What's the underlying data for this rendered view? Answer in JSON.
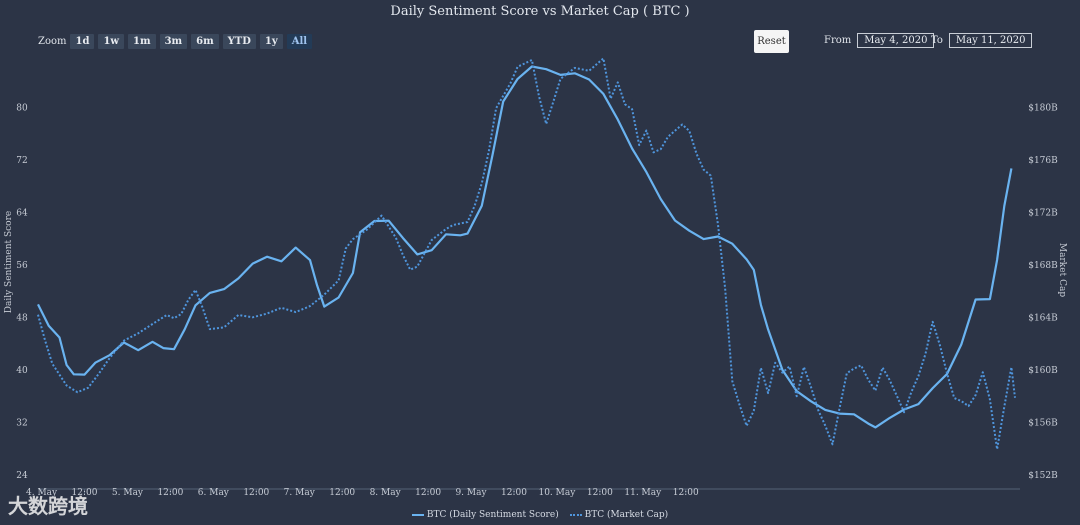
{
  "title": "Daily Sentiment Score vs Market Cap ( BTC )",
  "toolbar": {
    "zoom_label": "Zoom",
    "buttons": [
      "1d",
      "1w",
      "1m",
      "3m",
      "6m",
      "YTD",
      "1y",
      "All"
    ],
    "active": "All",
    "reset_label": "Reset",
    "from_label": "From",
    "from_value": "May 4, 2020",
    "to_label": "To",
    "to_value": "May 11, 2020"
  },
  "watermark": "大数跨境",
  "colors": {
    "sentiment": "#6ab3f0",
    "marketcap": "#4f95dc",
    "background": "#2c3446"
  },
  "chart_data": {
    "type": "line",
    "xlabel_ticks": [
      "4. May",
      "12:00",
      "5. May",
      "12:00",
      "6. May",
      "12:00",
      "7. May",
      "12:00",
      "8. May",
      "12:00",
      "9. May",
      "12:00",
      "10. May",
      "12:00",
      "11. May",
      "12:00"
    ],
    "x_unit": "hours since 4. May 00:00",
    "ylabel_left": "Daily Sentiment Score",
    "ylabel_right": "Market Cap",
    "yticks_left": [
      "24",
      "32",
      "40",
      "48",
      "56",
      "64",
      "72",
      "80"
    ],
    "yticks_right": [
      "$152B",
      "$156B",
      "$160B",
      "$164B",
      "$168B",
      "$172B",
      "$176B",
      "$180B"
    ],
    "ylim_left": [
      24,
      88
    ],
    "ylim_right": [
      152,
      184
    ],
    "legend": [
      "BTC (Daily Sentiment Score)",
      "BTC (Market Cap)"
    ],
    "series": [
      {
        "name": "BTC (Daily Sentiment Score)",
        "style": "solid",
        "axis": "left",
        "points": [
          [
            0,
            50
          ],
          [
            3,
            47
          ],
          [
            6,
            45
          ],
          [
            8,
            41
          ],
          [
            10,
            39.5
          ],
          [
            13,
            39.5
          ],
          [
            16,
            41
          ],
          [
            20,
            42.5
          ],
          [
            24,
            44
          ],
          [
            28,
            43
          ],
          [
            32,
            44.5
          ],
          [
            35,
            43.5
          ],
          [
            38,
            43
          ],
          [
            41,
            46
          ],
          [
            44,
            50
          ],
          [
            48,
            51.5
          ],
          [
            52,
            52.5
          ],
          [
            56,
            54
          ],
          [
            60,
            56
          ],
          [
            64,
            57.5
          ],
          [
            68,
            56.5
          ],
          [
            72,
            58.5
          ],
          [
            76,
            57
          ],
          [
            78,
            53
          ],
          [
            80,
            49.5
          ],
          [
            84,
            51
          ],
          [
            88,
            55
          ],
          [
            90,
            61
          ],
          [
            94,
            62.5
          ],
          [
            98,
            63
          ],
          [
            102,
            60
          ],
          [
            106,
            57.5
          ],
          [
            110,
            58.5
          ],
          [
            114,
            60.5
          ],
          [
            118,
            60.5
          ],
          [
            120,
            61
          ],
          [
            124,
            65
          ],
          [
            127,
            73
          ],
          [
            130,
            81
          ],
          [
            134,
            84.5
          ],
          [
            138,
            86
          ],
          [
            142,
            86
          ],
          [
            146,
            85
          ],
          [
            150,
            85
          ],
          [
            154,
            84.5
          ],
          [
            158,
            82
          ],
          [
            162,
            78
          ],
          [
            166,
            74
          ],
          [
            170,
            70
          ],
          [
            174,
            66
          ],
          [
            178,
            63
          ],
          [
            182,
            61
          ],
          [
            186,
            60
          ],
          [
            190,
            60.5
          ],
          [
            194,
            59
          ],
          [
            198,
            57
          ],
          [
            200,
            55.5
          ],
          [
            202,
            50
          ],
          [
            204,
            46
          ],
          [
            208,
            40
          ],
          [
            212,
            37
          ],
          [
            216,
            35
          ],
          [
            220,
            34
          ],
          [
            224,
            33.5
          ],
          [
            228,
            33
          ],
          [
            232,
            32
          ],
          [
            234,
            31.5
          ],
          [
            238,
            32.5
          ],
          [
            242,
            34
          ],
          [
            246,
            35
          ],
          [
            250,
            37
          ],
          [
            254,
            39.5
          ],
          [
            258,
            44
          ],
          [
            262,
            50.5
          ],
          [
            266,
            51
          ],
          [
            268,
            57
          ],
          [
            270,
            65
          ],
          [
            272,
            70.5
          ]
        ]
      },
      {
        "name": "BTC (Market Cap)",
        "style": "dotted",
        "axis": "right",
        "points": [
          [
            0,
            164
          ],
          [
            2,
            162
          ],
          [
            4,
            160.5
          ],
          [
            8,
            159
          ],
          [
            11,
            158.5
          ],
          [
            14,
            158.5
          ],
          [
            17,
            159.5
          ],
          [
            20,
            161
          ],
          [
            24,
            162
          ],
          [
            28,
            163
          ],
          [
            32,
            163.5
          ],
          [
            36,
            164
          ],
          [
            38,
            164
          ],
          [
            40,
            164.5
          ],
          [
            42,
            165.5
          ],
          [
            44,
            166
          ],
          [
            46,
            164.5
          ],
          [
            48,
            163
          ],
          [
            52,
            163.5
          ],
          [
            56,
            164
          ],
          [
            60,
            164
          ],
          [
            64,
            164.5
          ],
          [
            68,
            164.5
          ],
          [
            72,
            164.5
          ],
          [
            76,
            165
          ],
          [
            80,
            165.5
          ],
          [
            84,
            167
          ],
          [
            86,
            169.5
          ],
          [
            88,
            170
          ],
          [
            92,
            170.5
          ],
          [
            96,
            172
          ],
          [
            100,
            170
          ],
          [
            102,
            168.5
          ],
          [
            104,
            167.5
          ],
          [
            106,
            168
          ],
          [
            110,
            170
          ],
          [
            114,
            170.5
          ],
          [
            116,
            171
          ],
          [
            120,
            171.5
          ],
          [
            122,
            172.5
          ],
          [
            124,
            174
          ],
          [
            126,
            176.5
          ],
          [
            128,
            180
          ],
          [
            132,
            182
          ],
          [
            134,
            183
          ],
          [
            138,
            183.5
          ],
          [
            140,
            181
          ],
          [
            142,
            179
          ],
          [
            144,
            180.5
          ],
          [
            146,
            182
          ],
          [
            150,
            183
          ],
          [
            154,
            183
          ],
          [
            158,
            183.5
          ],
          [
            160,
            180.5
          ],
          [
            162,
            182
          ],
          [
            164,
            180.5
          ],
          [
            166,
            180
          ],
          [
            168,
            177
          ],
          [
            170,
            178
          ],
          [
            172,
            176.5
          ],
          [
            174,
            177
          ],
          [
            176,
            178
          ],
          [
            180,
            178.5
          ],
          [
            182,
            178
          ],
          [
            184,
            176.5
          ],
          [
            186,
            175.5
          ],
          [
            188,
            175
          ],
          [
            190,
            171
          ],
          [
            192,
            166
          ],
          [
            194,
            159
          ],
          [
            196,
            157.5
          ],
          [
            198,
            156
          ],
          [
            200,
            157
          ],
          [
            202,
            160
          ],
          [
            204,
            158
          ],
          [
            206,
            160.5
          ],
          [
            208,
            160
          ],
          [
            210,
            160.5
          ],
          [
            212,
            158
          ],
          [
            214,
            160
          ],
          [
            216,
            158.5
          ],
          [
            218,
            157
          ],
          [
            220,
            156
          ],
          [
            222,
            154.5
          ],
          [
            224,
            157
          ],
          [
            226,
            159.5
          ],
          [
            228,
            160
          ],
          [
            230,
            160.5
          ],
          [
            232,
            159.5
          ],
          [
            234,
            158.5
          ],
          [
            236,
            160
          ],
          [
            238,
            159
          ],
          [
            240,
            158
          ],
          [
            242,
            157
          ],
          [
            244,
            158.5
          ],
          [
            246,
            159.5
          ],
          [
            248,
            161
          ],
          [
            250,
            163.5
          ],
          [
            252,
            162
          ],
          [
            254,
            160
          ],
          [
            256,
            158
          ],
          [
            258,
            157.5
          ],
          [
            260,
            157
          ],
          [
            262,
            158
          ],
          [
            264,
            160
          ],
          [
            266,
            158
          ],
          [
            268,
            154
          ],
          [
            270,
            157
          ],
          [
            272,
            160
          ],
          [
            273,
            158
          ]
        ]
      }
    ]
  }
}
